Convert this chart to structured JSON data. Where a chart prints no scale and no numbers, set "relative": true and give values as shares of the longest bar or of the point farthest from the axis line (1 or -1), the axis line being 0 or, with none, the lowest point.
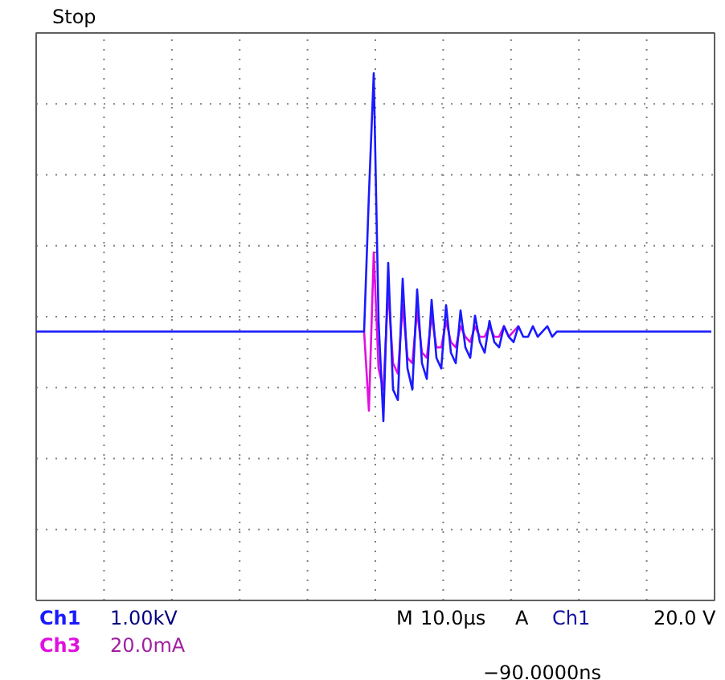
{
  "chart_data": {
    "type": "line",
    "relative": true,
    "grid": true,
    "legend": "bottom left",
    "line_style": "solid",
    "marker": "none",
    "categories": [
      null,
      null,
      null,
      null,
      null,
      null,
      null,
      null,
      null,
      null,
      null,
      null,
      null,
      null,
      null,
      null,
      null,
      null,
      null,
      null,
      null,
      null,
      null,
      null,
      null,
      null,
      null,
      null,
      null,
      null,
      null,
      null,
      null,
      null,
      null,
      null,
      null,
      null,
      null,
      null,
      null,
      null,
      null,
      null,
      null,
      null,
      null,
      null,
      null,
      null,
      null,
      null,
      null,
      null,
      null,
      null,
      null,
      null,
      null,
      null,
      null,
      null,
      null,
      null,
      null,
      null,
      null,
      null,
      null,
      null,
      null,
      null,
      null,
      null,
      null,
      null,
      null,
      null,
      null,
      null,
      null,
      null,
      null,
      null,
      null,
      null,
      null,
      null,
      null,
      null,
      null,
      null,
      null,
      null,
      null,
      null,
      null,
      null,
      null,
      null,
      null,
      null,
      null,
      null,
      null,
      null,
      null,
      null,
      null,
      null,
      null,
      null,
      null,
      null,
      null,
      null,
      null,
      null,
      null,
      null,
      null,
      null,
      null,
      null,
      null,
      null,
      null,
      null,
      null,
      null,
      null,
      null,
      null,
      null,
      null,
      null,
      null,
      null,
      null,
      null,
      null
    ],
    "series": [
      {
        "name": "Ch3",
        "color": "#e010e0",
        "values": [
          null,
          null,
          null,
          null,
          null,
          null,
          null,
          null,
          null,
          null,
          null,
          null,
          null,
          null,
          null,
          null,
          null,
          null,
          null,
          null,
          null,
          null,
          null,
          null,
          null,
          null,
          null,
          null,
          null,
          null,
          null,
          null,
          null,
          null,
          null,
          null,
          null,
          null,
          null,
          null,
          null,
          null,
          null,
          null,
          null,
          null,
          null,
          null,
          null,
          null,
          null,
          null,
          null,
          null,
          null,
          null,
          null,
          null,
          null,
          null,
          null,
          null,
          null,
          null,
          null,
          null,
          null,
          null,
          0.51,
          0.36,
          0.66,
          0.44,
          0.4,
          0.59,
          0.45,
          0.43,
          0.56,
          0.46,
          0.45,
          0.55,
          0.47,
          0.46,
          0.54,
          0.48,
          0.48,
          0.53,
          0.49,
          0.48,
          0.52,
          0.5,
          0.49,
          0.52,
          0.5,
          0.5,
          0.52,
          0.5,
          0.5,
          0.52,
          0.5,
          0.51,
          0.52,
          null,
          null,
          null,
          null,
          null,
          null,
          null,
          null,
          null,
          null,
          null,
          null,
          null,
          null,
          null,
          null,
          null,
          null,
          null,
          null,
          null,
          null,
          null,
          null,
          null,
          null,
          null,
          null,
          null,
          null,
          null,
          null,
          null,
          null,
          null,
          null,
          null,
          null,
          null,
          null
        ]
      },
      {
        "name": "Ch1",
        "color": "#1a1aff",
        "values": [
          0.51,
          0.51,
          0.51,
          0.51,
          0.51,
          0.51,
          0.51,
          0.51,
          0.51,
          0.51,
          0.51,
          0.51,
          0.51,
          0.51,
          0.51,
          0.51,
          0.51,
          0.51,
          0.51,
          0.51,
          0.51,
          0.51,
          0.51,
          0.51,
          0.51,
          0.51,
          0.51,
          0.51,
          0.51,
          0.51,
          0.51,
          0.51,
          0.51,
          0.51,
          0.51,
          0.51,
          0.51,
          0.51,
          0.51,
          0.51,
          0.51,
          0.51,
          0.51,
          0.51,
          0.51,
          0.51,
          0.51,
          0.51,
          0.51,
          0.51,
          0.51,
          0.51,
          0.51,
          0.51,
          0.51,
          0.51,
          0.51,
          0.51,
          0.51,
          0.51,
          0.51,
          0.51,
          0.51,
          0.51,
          0.51,
          0.51,
          0.51,
          0.51,
          0.51,
          0.77,
          1,
          0.53,
          0.34,
          0.64,
          0.4,
          0.38,
          0.61,
          0.44,
          0.4,
          0.59,
          0.45,
          0.42,
          0.57,
          0.46,
          0.44,
          0.56,
          0.47,
          0.45,
          0.55,
          0.48,
          0.46,
          0.54,
          0.49,
          0.47,
          0.53,
          0.49,
          0.48,
          0.52,
          0.5,
          0.49,
          0.52,
          0.5,
          0.5,
          0.52,
          0.5,
          0.51,
          0.52,
          0.5,
          0.51,
          0.51,
          0.51,
          0.51,
          0.51,
          0.51,
          0.51,
          0.51,
          0.51,
          0.51,
          0.51,
          0.51,
          0.51,
          0.51,
          0.51,
          0.51,
          0.51,
          0.51,
          0.51,
          0.51,
          0.51,
          0.51,
          0.51,
          0.51,
          0.51,
          0.51,
          0.51,
          0.51,
          0.51,
          0.51,
          0.51,
          0.51,
          0.51
        ]
      }
    ],
    "annotations": [
      "Stop",
      "1.00kV",
      "20.0mA",
      "M",
      "10.0μs",
      "A",
      "Ch1",
      "20.0 V",
      "−90.0000ns"
    ]
  }
}
